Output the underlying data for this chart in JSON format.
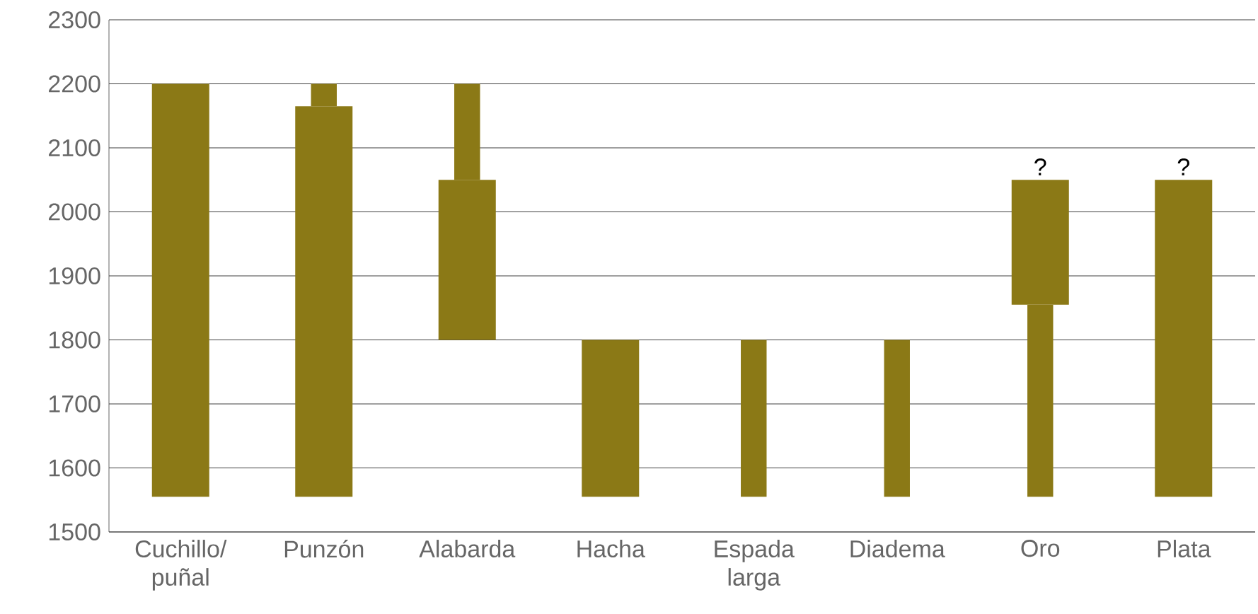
{
  "chart_data": {
    "type": "bar",
    "categories": [
      "Cuchillo/ puñal",
      "Punzón",
      "Alabarda",
      "Hacha",
      "Espada larga",
      "Diadema",
      "Oro",
      "Plata"
    ],
    "series": [
      {
        "color": "#8b7916",
        "base": [
          1555,
          1555,
          1800,
          1555,
          null,
          null,
          1855,
          1555
        ],
        "values": [
          645,
          610,
          250,
          245,
          null,
          null,
          195,
          495
        ]
      },
      {
        "color": "#8b7916",
        "base": [
          null,
          2165,
          2050,
          null,
          1555,
          1555,
          1555,
          null
        ],
        "values": [
          null,
          35,
          150,
          null,
          245,
          245,
          300,
          null
        ]
      }
    ],
    "ylim": [
      1500,
      2300
    ],
    "yticks": [
      1500,
      1600,
      1700,
      1800,
      1900,
      2000,
      2100,
      2200,
      2300
    ],
    "grid": "y",
    "annotations": [
      {
        "text": "?",
        "x": "Oro",
        "y": 2050
      },
      {
        "text": "?",
        "x": "Plata",
        "y": 2050
      }
    ]
  }
}
